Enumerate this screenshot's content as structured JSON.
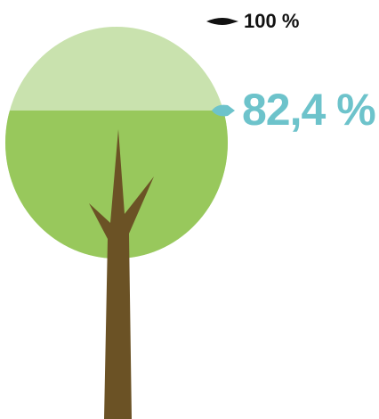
{
  "chart_data": {
    "type": "tree-fill",
    "values": [
      82.4
    ],
    "value_labels": [
      "82,4 %"
    ],
    "ylim": [
      0,
      100
    ],
    "yticks": [
      {
        "value": 100,
        "label": "100 %"
      }
    ],
    "color": "#98c85c",
    "background_color": "#c9e2ae",
    "label_color": "#6dc3cb",
    "tick_color": "#111111"
  }
}
